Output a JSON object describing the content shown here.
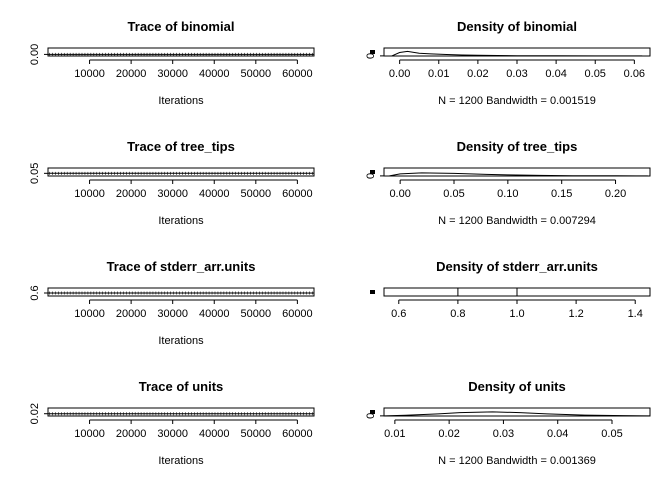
{
  "chart_data": [
    {
      "type": "line",
      "title": "Trace of binomial",
      "xlabel": "Iterations",
      "ylabel": "",
      "x_ticks": [
        "10000",
        "20000",
        "30000",
        "40000",
        "50000",
        "60000"
      ],
      "y_ticks": [
        "0.00"
      ],
      "xlim": [
        0,
        64000
      ],
      "ylim": [
        -0.003,
        0.012
      ],
      "series": [
        {
          "x": [
            0,
            64000
          ],
          "values": [
            0.0,
            0.0
          ]
        }
      ]
    },
    {
      "type": "area",
      "title": "Density of binomial",
      "xlabel": "N = 1200   Bandwidth = 0.001519",
      "ylabel": "",
      "x_ticks": [
        "0.00",
        "0.01",
        "0.02",
        "0.03",
        "0.04",
        "0.05",
        "0.06"
      ],
      "y_ticks": [
        "0"
      ],
      "xlim": [
        -0.004,
        0.064
      ],
      "ylim": [
        -5,
        350
      ],
      "series": [
        {
          "x": [
            -0.002,
            0.0,
            0.002,
            0.005,
            0.008,
            0.012,
            0.016,
            0.02,
            0.025,
            0.03,
            0.04,
            0.05,
            0.062
          ],
          "values": [
            0,
            150,
            200,
            120,
            90,
            60,
            40,
            25,
            15,
            8,
            3,
            1,
            0
          ]
        }
      ]
    },
    {
      "type": "line",
      "title": "Trace of tree_tips",
      "xlabel": "Iterations",
      "ylabel": "",
      "x_ticks": [
        "10000",
        "20000",
        "30000",
        "40000",
        "50000",
        "60000"
      ],
      "y_ticks": [
        "0.05"
      ],
      "xlim": [
        0,
        64000
      ],
      "ylim": [
        0.04,
        0.07
      ],
      "series": [
        {
          "x": [
            0,
            64000
          ],
          "values": [
            0.05,
            0.05
          ]
        }
      ]
    },
    {
      "type": "area",
      "title": "Density of tree_tips",
      "xlabel": "N = 1200   Bandwidth = 0.007294",
      "ylabel": "",
      "x_ticks": [
        "0.00",
        "0.05",
        "0.10",
        "0.15",
        "0.20"
      ],
      "y_ticks": [
        "0"
      ],
      "xlim": [
        -0.015,
        0.232
      ],
      "ylim": [
        -1,
        80
      ],
      "series": [
        {
          "x": [
            -0.01,
            0.0,
            0.02,
            0.05,
            0.08,
            0.1,
            0.13,
            0.16,
            0.2,
            0.23
          ],
          "values": [
            0,
            20,
            30,
            25,
            15,
            10,
            5,
            2,
            1,
            0
          ]
        }
      ]
    },
    {
      "type": "line",
      "title": "Trace of stderr_arr.units",
      "xlabel": "Iterations",
      "ylabel": "",
      "x_ticks": [
        "10000",
        "20000",
        "30000",
        "40000",
        "50000",
        "60000"
      ],
      "y_ticks": [
        "0.6"
      ],
      "xlim": [
        0,
        64000
      ],
      "ylim": [
        0.585,
        0.625
      ],
      "series": [
        {
          "x": [
            0,
            64000
          ],
          "values": [
            0.6,
            0.6
          ]
        }
      ]
    },
    {
      "type": "area",
      "title": "Density of stderr_arr.units",
      "xlabel": "",
      "ylabel": "",
      "x_ticks": [
        "0.6",
        "0.8",
        "1.0",
        "1.2",
        "1.4"
      ],
      "y_ticks": [],
      "xlim": [
        0.55,
        1.45
      ],
      "ylim": [
        0,
        1
      ],
      "series": [
        {
          "x": [
            0.8,
            0.8,
            1.0,
            1.0
          ],
          "values": [
            0,
            1,
            1,
            0
          ]
        }
      ]
    },
    {
      "type": "line",
      "title": "Trace of units",
      "xlabel": "Iterations",
      "ylabel": "",
      "x_ticks": [
        "10000",
        "20000",
        "30000",
        "40000",
        "50000",
        "60000"
      ],
      "y_ticks": [
        "0.02"
      ],
      "xlim": [
        0,
        64000
      ],
      "ylim": [
        0.01,
        0.045
      ],
      "series": [
        {
          "x": [
            0,
            64000
          ],
          "values": [
            0.02,
            0.02
          ]
        }
      ]
    },
    {
      "type": "area",
      "title": "Density of units",
      "xlabel": "N = 1200   Bandwidth = 0.001369",
      "ylabel": "",
      "x_ticks": [
        "0.01",
        "0.02",
        "0.03",
        "0.04",
        "0.05"
      ],
      "y_ticks": [
        "0"
      ],
      "xlim": [
        0.008,
        0.057
      ],
      "ylim": [
        -1,
        60
      ],
      "series": [
        {
          "x": [
            0.008,
            0.012,
            0.018,
            0.022,
            0.028,
            0.033,
            0.038,
            0.045,
            0.052,
            0.057
          ],
          "values": [
            0,
            5,
            15,
            25,
            30,
            25,
            15,
            6,
            2,
            0
          ]
        }
      ]
    }
  ]
}
